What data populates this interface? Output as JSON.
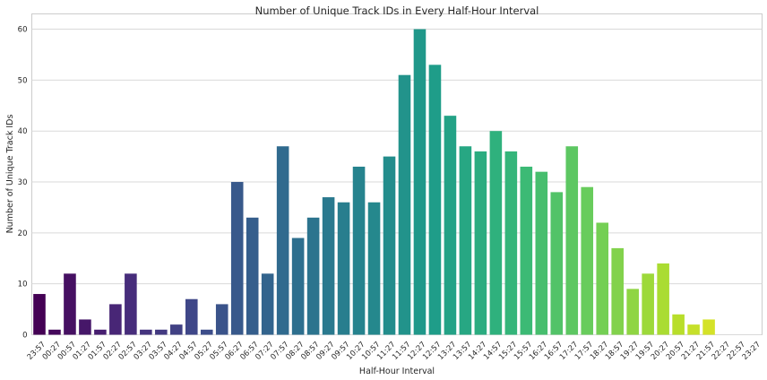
{
  "chart_data": {
    "type": "bar",
    "title": "Number of Unique Track IDs in Every Half-Hour Interval",
    "xlabel": "Half-Hour Interval",
    "ylabel": "Number of Unique Track IDs",
    "ylim": [
      0,
      63
    ],
    "yticks": [
      0,
      10,
      20,
      30,
      40,
      50,
      60
    ],
    "grid": "horizontal",
    "palette": "viridis",
    "categories": [
      "23:57",
      "00:27",
      "00:57",
      "01:27",
      "01:57",
      "02:27",
      "02:57",
      "03:27",
      "03:57",
      "04:27",
      "04:57",
      "05:27",
      "05:57",
      "06:27",
      "06:57",
      "07:27",
      "07:57",
      "08:27",
      "08:57",
      "09:27",
      "09:57",
      "10:27",
      "10:57",
      "11:27",
      "11:57",
      "12:27",
      "12:57",
      "13:27",
      "13:57",
      "14:27",
      "14:57",
      "15:27",
      "15:57",
      "16:27",
      "16:57",
      "17:27",
      "17:57",
      "18:27",
      "18:57",
      "19:27",
      "19:57",
      "20:27",
      "20:57",
      "21:27",
      "21:57",
      "22:27",
      "22:57",
      "23:27"
    ],
    "values": [
      8,
      1,
      12,
      3,
      1,
      6,
      12,
      1,
      1,
      2,
      7,
      1,
      6,
      30,
      23,
      12,
      37,
      19,
      23,
      27,
      26,
      33,
      26,
      35,
      51,
      60,
      53,
      43,
      37,
      36,
      40,
      36,
      33,
      32,
      28,
      37,
      29,
      22,
      17,
      9,
      12,
      14,
      4,
      2,
      3,
      0,
      0,
      0
    ]
  }
}
